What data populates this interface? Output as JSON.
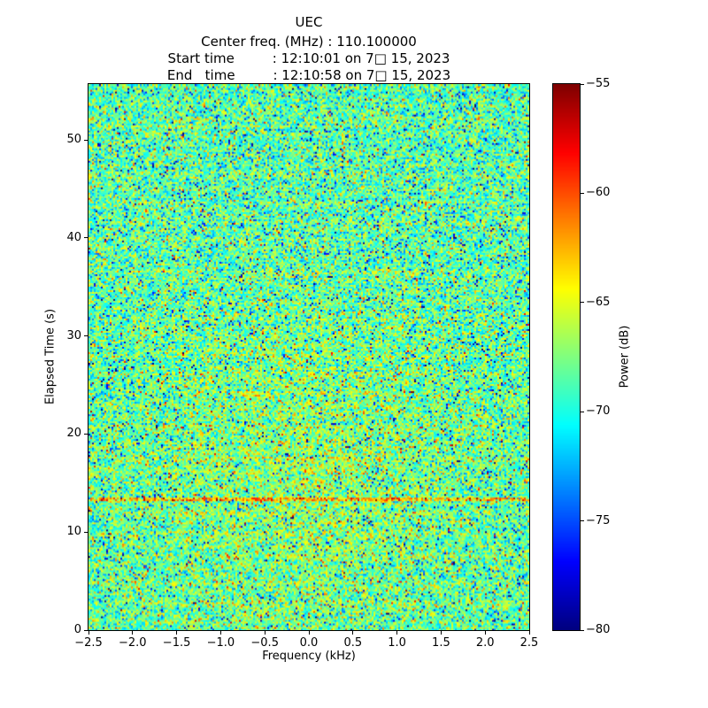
{
  "figure": {
    "title": "UEC",
    "subtitle_lines": [
      "Center freq. (MHz) : 110.100000",
      "Start time         : 12:10:01 on 7□ 15, 2023",
      "End   time         : 12:10:58 on 7□ 15, 2023"
    ]
  },
  "chart_data": {
    "type": "heatmap",
    "title": "UEC",
    "center_freq_mhz": 110.1,
    "start_time": "12:10:01 on 7□ 15, 2023",
    "end_time": "12:10:58 on 7□ 15, 2023",
    "xlabel": "Frequency (kHz)",
    "ylabel": "Elapsed Time (s)",
    "xlim": [
      -2.5,
      2.5
    ],
    "ylim": [
      0,
      55.7
    ],
    "x_ticks": [
      -2.5,
      -2.0,
      -1.5,
      -1.0,
      -0.5,
      0.0,
      0.5,
      1.0,
      1.5,
      2.0,
      2.5
    ],
    "x_tick_labels": [
      "−2.5",
      "−2.0",
      "−1.5",
      "−1.0",
      "−0.5",
      "0.0",
      "0.5",
      "1.0",
      "1.5",
      "2.0",
      "2.5"
    ],
    "y_ticks": [
      0,
      10,
      20,
      30,
      40,
      50
    ],
    "y_tick_labels": [
      "0",
      "10",
      "20",
      "30",
      "40",
      "50"
    ],
    "grid": false,
    "colorbar": {
      "label": "Power (dB)",
      "colormap": "jet",
      "vmin": -80,
      "vmax": -55,
      "ticks": [
        -55,
        -60,
        -65,
        -70,
        -75,
        -80
      ],
      "tick_labels": [
        "−55",
        "−60",
        "−65",
        "−70",
        "−75",
        "−80"
      ]
    },
    "content": {
      "description": "Spectrogram / waterfall of broadband random noise; mostly green-cyan-yellow speckle (about -72 to -63 dB) with sparse dark-blue dropouts and red/orange spikes.",
      "noise_mean_db": -68.5,
      "noise_std_db": 2.6,
      "features": [
        {
          "type": "horizontal-band",
          "elapsed_time_s": 13.4,
          "boost_db": 5,
          "note": "brighter orange line across all frequencies"
        },
        {
          "type": "center-brightening",
          "freq_khz": 0.0,
          "boost_db": 1.6,
          "note": "slight warm brightening near center frequency, strongest for elapsed time ~5-30 s"
        }
      ],
      "grid_cols": 249,
      "grid_rows": 308,
      "seed": 42
    }
  }
}
